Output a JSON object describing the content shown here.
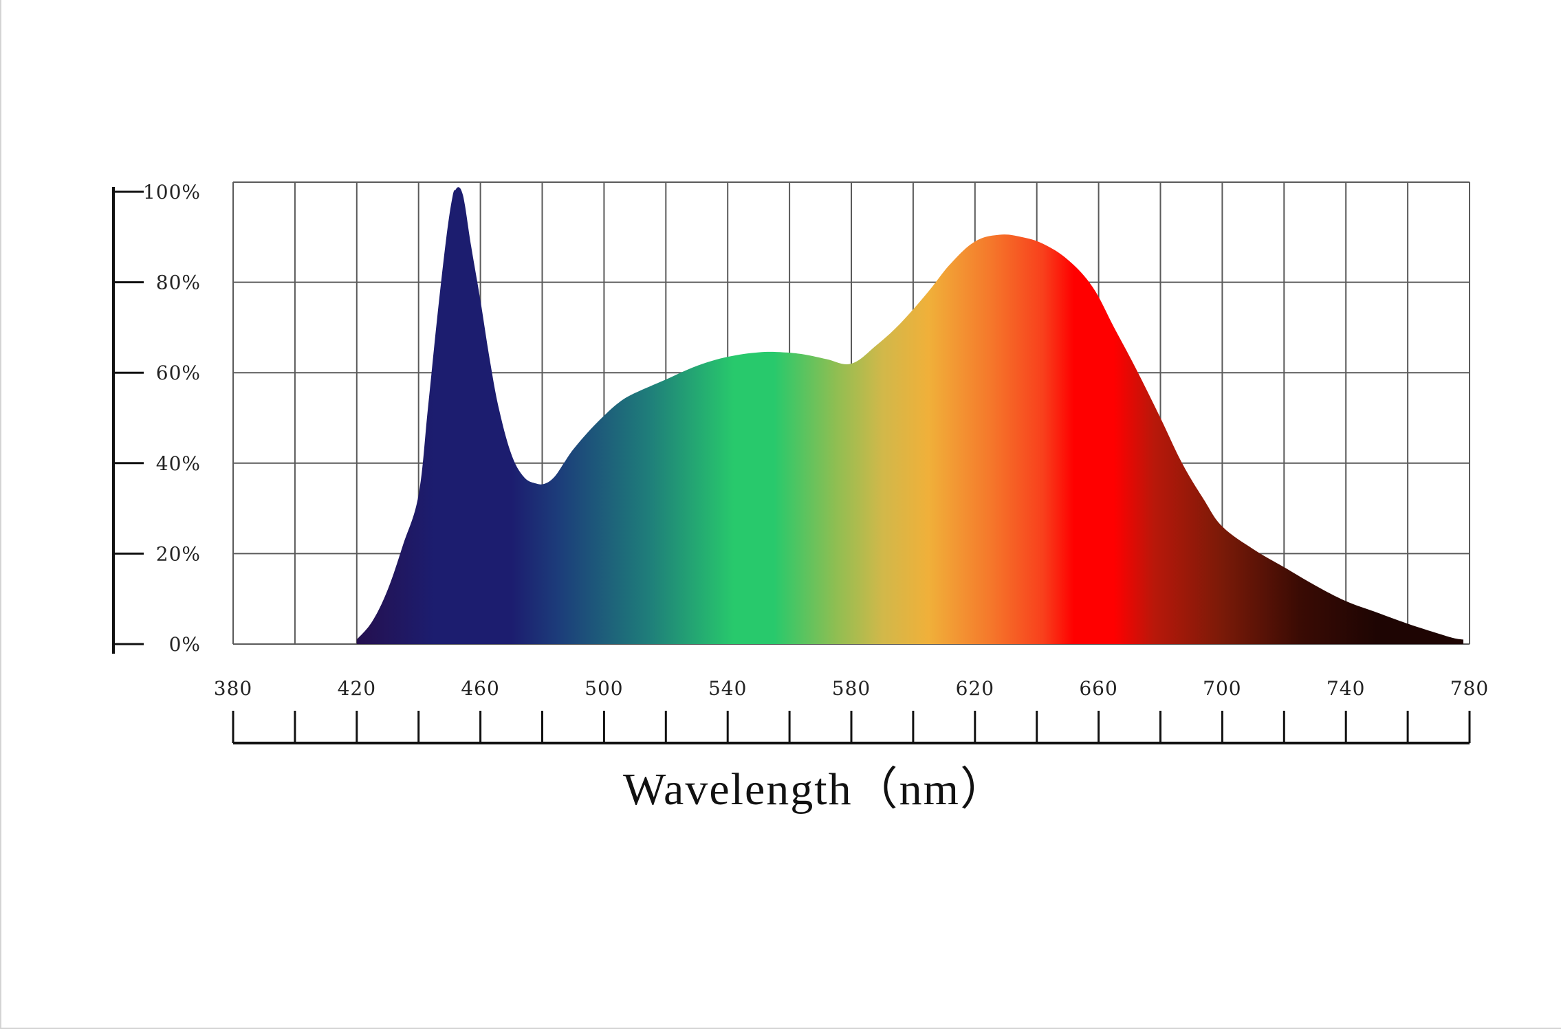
{
  "chart_data": {
    "type": "area",
    "title": "",
    "xlabel": "Wavelength（nm）",
    "ylabel": "",
    "xlim": [
      380,
      780
    ],
    "ylim": [
      0,
      100
    ],
    "grid": true,
    "x_ticks": [
      {
        "value": 380,
        "label": "380"
      },
      {
        "value": 420,
        "label": "420"
      },
      {
        "value": 460,
        "label": "460"
      },
      {
        "value": 500,
        "label": "500"
      },
      {
        "value": 540,
        "label": "540"
      },
      {
        "value": 580,
        "label": "580"
      },
      {
        "value": 620,
        "label": "620"
      },
      {
        "value": 660,
        "label": "660"
      },
      {
        "value": 700,
        "label": "700"
      },
      {
        "value": 740,
        "label": "740"
      },
      {
        "value": 780,
        "label": "780"
      }
    ],
    "y_ticks": [
      {
        "value": 0,
        "label": "0%"
      },
      {
        "value": 20,
        "label": "20%"
      },
      {
        "value": 40,
        "label": "40%"
      },
      {
        "value": 60,
        "label": "60%"
      },
      {
        "value": 80,
        "label": "80%"
      },
      {
        "value": 100,
        "label": "100%"
      }
    ],
    "series": [
      {
        "x": [
          420,
          425,
          430,
          435,
          440,
          443,
          446,
          449,
          451,
          452,
          453,
          454,
          455,
          457,
          460,
          463,
          466,
          470,
          474,
          478,
          481,
          484,
          487,
          490,
          495,
          500,
          505,
          510,
          520,
          530,
          540,
          550,
          558,
          565,
          572,
          580,
          588,
          596,
          605,
          612,
          620,
          628,
          635,
          642,
          650,
          658,
          665,
          672,
          680,
          687,
          694,
          700,
          710,
          720,
          730,
          740,
          750,
          760,
          770,
          775,
          778
        ],
        "y": [
          1,
          5,
          12,
          22,
          33,
          52,
          72,
          90,
          99,
          100.5,
          101,
          100,
          97,
          88,
          76,
          63,
          52,
          42,
          37,
          35.5,
          35.5,
          37,
          40,
          43,
          47,
          50.5,
          53.5,
          55.5,
          58.5,
          61.5,
          63.5,
          64.5,
          64.5,
          64,
          63,
          62,
          66,
          71,
          78,
          84,
          89,
          90.5,
          90,
          88.5,
          85,
          79,
          70,
          61,
          50,
          40,
          32,
          26,
          21,
          17,
          13,
          9.5,
          7,
          4.5,
          2.3,
          1.3,
          1
        ]
      }
    ],
    "colors": {
      "violet": "#25104f",
      "blue": "#1c1d6f",
      "blue_teal": "#1c3c7a",
      "teal": "#1f7f7a",
      "green": "#28c96c",
      "yellow_green": "#8fbe52",
      "yellow": "#d1b84a",
      "orange_yellow": "#f0b03a",
      "orange": "#f5782b",
      "red_orange": "#f8401c",
      "red": "#ff0000",
      "dark_red": "#b8180a",
      "brown": "#7a1a08",
      "dark_brown": "#3a0b04",
      "deep_brown": "#1e0503",
      "grid": "#5a5a5a",
      "axis": "#111111"
    }
  }
}
